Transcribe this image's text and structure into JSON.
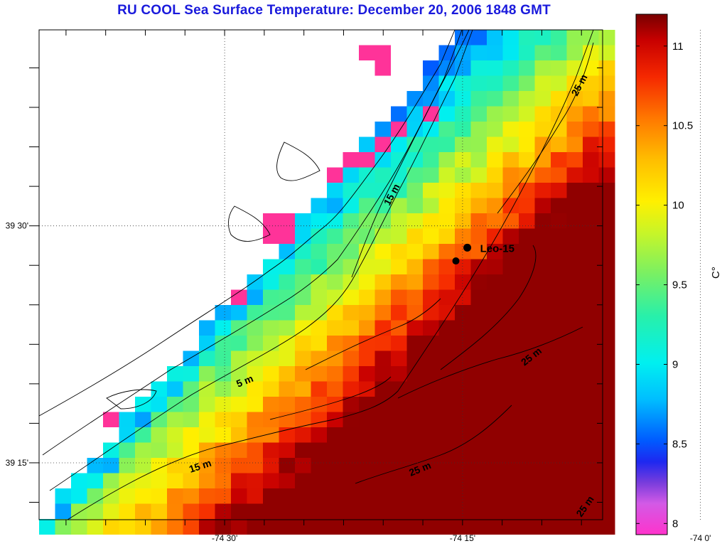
{
  "title": "RU COOL  Sea Surface Temperature:  December 20, 2006 1848 GMT",
  "map": {
    "lon_labels": [
      {
        "lon": -74.5,
        "label": "-74 30'"
      },
      {
        "lon": -74.25,
        "label": "-74 15'"
      },
      {
        "lon": -74.0,
        "label": "-74 0'"
      }
    ],
    "lat_labels": [
      {
        "lat": 39.5,
        "label": "39 30'"
      },
      {
        "lat": 39.25,
        "label": "39 15'"
      }
    ],
    "lon_range": [
      -74.695,
      -74.1028
    ],
    "lat_range": [
      39.19,
      39.7068
    ],
    "station": {
      "name": "Leo-15",
      "lon": -74.245,
      "lat": 39.477
    },
    "station2": {
      "lon": -74.257,
      "lat": 39.463
    },
    "contour_labels": [
      "15 m",
      "5 m",
      "25 m",
      "25 m",
      "15 m",
      "25 m",
      "25 m"
    ]
  },
  "colorbar": {
    "unit": "C°",
    "unit_base": "C",
    "unit_sup": "o",
    "min": 7.93,
    "max": 11.2,
    "ticks": [
      {
        "value": 8.0,
        "label": "8"
      },
      {
        "value": 8.5,
        "label": "8.5"
      },
      {
        "value": 9.0,
        "label": "9"
      },
      {
        "value": 9.5,
        "label": "9.5"
      },
      {
        "value": 10.0,
        "label": "10"
      },
      {
        "value": 10.5,
        "label": "10.5"
      },
      {
        "value": 11.0,
        "label": "11"
      }
    ]
  },
  "colors": {
    "title": "#1a1adc",
    "land_flag": "#ff3399"
  }
}
